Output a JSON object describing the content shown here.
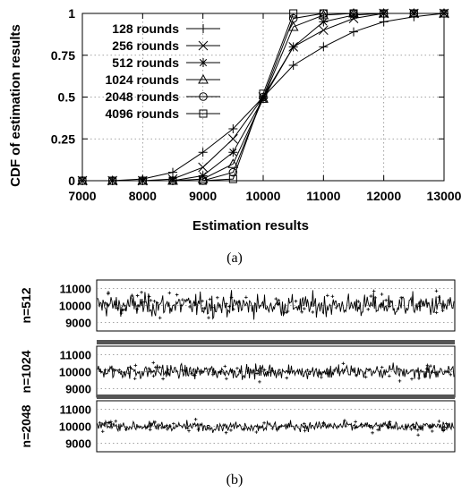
{
  "chart_data": [
    {
      "type": "line",
      "panel_caption": "(a)",
      "title": "",
      "xlabel": "Estimation results",
      "ylabel": "CDF of estimation results",
      "xlim": [
        7000,
        13000
      ],
      "ylim": [
        0,
        1
      ],
      "x_ticks": [
        7000,
        8000,
        9000,
        10000,
        11000,
        12000,
        13000
      ],
      "y_ticks": [
        0,
        0.25,
        0.5,
        0.75,
        1
      ],
      "x_tick_labels": [
        "7000",
        "8000",
        "9000",
        "10000",
        "11000",
        "12000",
        "13000"
      ],
      "y_tick_labels": [
        "0",
        "0.25",
        "0.5",
        "0.75",
        "1"
      ],
      "grid": true,
      "legend_position": "top-left",
      "series": [
        {
          "name": "128 rounds",
          "marker": "plus",
          "x": [
            7000,
            7500,
            8000,
            8500,
            9000,
            9500,
            10000,
            10500,
            11000,
            11500,
            12000,
            12500,
            13000
          ],
          "y": [
            0,
            0,
            0.01,
            0.05,
            0.17,
            0.31,
            0.5,
            0.69,
            0.8,
            0.89,
            0.95,
            0.98,
            1.0
          ]
        },
        {
          "name": "256 rounds",
          "marker": "cross",
          "x": [
            7000,
            7500,
            8000,
            8500,
            9000,
            9500,
            10000,
            10500,
            11000,
            11500,
            12000,
            12500,
            13000
          ],
          "y": [
            0,
            0,
            0,
            0.01,
            0.08,
            0.25,
            0.5,
            0.8,
            0.9,
            0.97,
            1.0,
            1.0,
            1.0
          ]
        },
        {
          "name": "512 rounds",
          "marker": "star",
          "x": [
            7000,
            7500,
            8000,
            8500,
            9000,
            9500,
            10000,
            10500,
            11000,
            11500,
            12000,
            12500,
            13000
          ],
          "y": [
            0,
            0,
            0,
            0,
            0.03,
            0.17,
            0.49,
            0.8,
            0.95,
            0.99,
            1.0,
            1.0,
            1.0
          ]
        },
        {
          "name": "1024 rounds",
          "marker": "triangle",
          "x": [
            7000,
            7500,
            8000,
            8500,
            9000,
            9500,
            10000,
            10500,
            11000,
            11500,
            12000,
            12500,
            13000
          ],
          "y": [
            0,
            0,
            0,
            0,
            0.01,
            0.1,
            0.49,
            0.92,
            0.99,
            1.0,
            1.0,
            1.0,
            1.0
          ]
        },
        {
          "name": "2048 rounds",
          "marker": "circle",
          "x": [
            7000,
            7500,
            8000,
            8500,
            9000,
            9500,
            10000,
            10500,
            11000,
            11500,
            12000,
            12500,
            13000
          ],
          "y": [
            0,
            0,
            0,
            0,
            0,
            0.05,
            0.5,
            0.97,
            1.0,
            1.0,
            1.0,
            1.0,
            1.0
          ]
        },
        {
          "name": "4096 rounds",
          "marker": "square",
          "x": [
            7000,
            7500,
            8000,
            8500,
            9000,
            9500,
            10000,
            10500,
            11000,
            11500,
            12000,
            12500,
            13000
          ],
          "y": [
            0,
            0,
            0,
            0,
            0,
            0.01,
            0.52,
            1.0,
            1.0,
            1.0,
            1.0,
            1.0,
            1.0
          ]
        }
      ]
    },
    {
      "type": "line",
      "panel_caption": "(b)",
      "title": "",
      "xlabel": "",
      "ylim": [
        8500,
        11500
      ],
      "y_ticks": [
        9000,
        10000,
        11000
      ],
      "y_tick_labels": [
        "9000",
        "10000",
        "11000"
      ],
      "grid": true,
      "series": [
        {
          "name": "n=512",
          "mean": 10000,
          "typical_spread": [
            9100,
            10950
          ],
          "extreme_range": [
            8800,
            11300
          ]
        },
        {
          "name": "n=1024",
          "mean": 10000,
          "typical_spread": [
            9450,
            10600
          ],
          "extreme_range": [
            9200,
            10800
          ]
        },
        {
          "name": "n=2048",
          "mean": 10000,
          "typical_spread": [
            9600,
            10400
          ],
          "extreme_range": [
            9400,
            10600
          ]
        }
      ]
    }
  ]
}
